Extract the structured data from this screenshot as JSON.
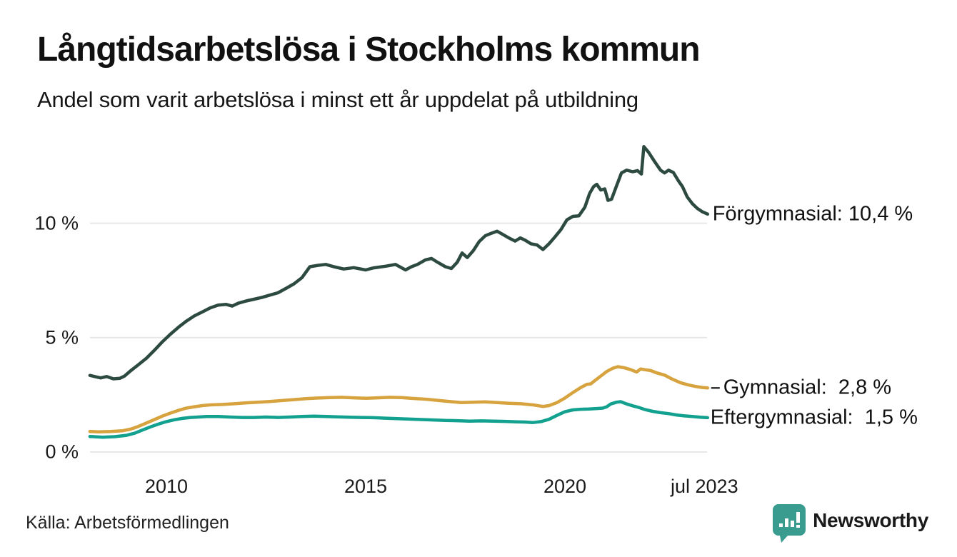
{
  "header": {
    "title": "Långtidsarbetslösa i Stockholms kommun",
    "subtitle": "Andel som varit arbetslösa i minst ett år uppdelat på utbildning"
  },
  "footer": {
    "source": "Källa: Arbetsförmedlingen",
    "brand": "Newsworthy"
  },
  "colors": {
    "forgymnasial": "#2d4a41",
    "gymnasial": "#d7a33f",
    "eftergymnasial": "#12a18e",
    "grid": "#e7e7e7",
    "label_dash": "#333333",
    "text": "#1a1a1a",
    "brand": "#3a9b8f"
  },
  "chart_data": {
    "type": "line",
    "title": "Långtidsarbetslösa i Stockholms kommun",
    "subtitle": "Andel som varit arbetslösa i minst ett år uppdelat på utbildning",
    "xlabel": "",
    "ylabel": "",
    "unit": "%",
    "grid": true,
    "legend_position": "end-of-line",
    "x_range": [
      2008.08,
      2023.58
    ],
    "ylim": [
      0,
      13.8
    ],
    "x_ticks": [
      {
        "label": "2010",
        "year": 2010
      },
      {
        "label": "2015",
        "year": 2015
      },
      {
        "label": "2020",
        "year": 2020
      },
      {
        "label": "jul 2023",
        "year": 2023.5
      }
    ],
    "y_ticks": [
      {
        "label": "0 %",
        "value": 0
      },
      {
        "label": "5 %",
        "value": 5
      },
      {
        "label": "10 %",
        "value": 10
      }
    ],
    "series": [
      {
        "name": "Förgymnasial",
        "end_label": "Förgymnasial: 10,4 %",
        "end_value": 10.4,
        "color": "#2d4a41",
        "leader_dash": false,
        "label_offset": 7,
        "points": [
          [
            2008.08,
            3.35
          ],
          [
            2008.2,
            3.3
          ],
          [
            2008.35,
            3.24
          ],
          [
            2008.5,
            3.3
          ],
          [
            2008.67,
            3.2
          ],
          [
            2008.83,
            3.22
          ],
          [
            2008.95,
            3.32
          ],
          [
            2009.1,
            3.55
          ],
          [
            2009.3,
            3.82
          ],
          [
            2009.5,
            4.1
          ],
          [
            2009.7,
            4.45
          ],
          [
            2009.9,
            4.82
          ],
          [
            2010.1,
            5.15
          ],
          [
            2010.3,
            5.45
          ],
          [
            2010.5,
            5.72
          ],
          [
            2010.7,
            5.95
          ],
          [
            2010.9,
            6.12
          ],
          [
            2011.1,
            6.3
          ],
          [
            2011.3,
            6.42
          ],
          [
            2011.5,
            6.45
          ],
          [
            2011.65,
            6.38
          ],
          [
            2011.8,
            6.5
          ],
          [
            2012.0,
            6.6
          ],
          [
            2012.2,
            6.68
          ],
          [
            2012.4,
            6.76
          ],
          [
            2012.6,
            6.86
          ],
          [
            2012.8,
            6.96
          ],
          [
            2013.0,
            7.15
          ],
          [
            2013.2,
            7.35
          ],
          [
            2013.4,
            7.62
          ],
          [
            2013.6,
            8.1
          ],
          [
            2013.8,
            8.16
          ],
          [
            2014.0,
            8.2
          ],
          [
            2014.2,
            8.1
          ],
          [
            2014.45,
            8.0
          ],
          [
            2014.7,
            8.06
          ],
          [
            2015.0,
            7.96
          ],
          [
            2015.2,
            8.05
          ],
          [
            2015.5,
            8.12
          ],
          [
            2015.75,
            8.2
          ],
          [
            2016.0,
            7.96
          ],
          [
            2016.15,
            8.1
          ],
          [
            2016.3,
            8.2
          ],
          [
            2016.5,
            8.4
          ],
          [
            2016.65,
            8.46
          ],
          [
            2016.8,
            8.3
          ],
          [
            2017.0,
            8.1
          ],
          [
            2017.15,
            8.02
          ],
          [
            2017.3,
            8.3
          ],
          [
            2017.42,
            8.7
          ],
          [
            2017.55,
            8.5
          ],
          [
            2017.7,
            8.8
          ],
          [
            2017.85,
            9.2
          ],
          [
            2018.0,
            9.45
          ],
          [
            2018.15,
            9.56
          ],
          [
            2018.3,
            9.65
          ],
          [
            2018.45,
            9.5
          ],
          [
            2018.6,
            9.35
          ],
          [
            2018.75,
            9.22
          ],
          [
            2018.88,
            9.36
          ],
          [
            2019.0,
            9.26
          ],
          [
            2019.15,
            9.1
          ],
          [
            2019.3,
            9.05
          ],
          [
            2019.45,
            8.85
          ],
          [
            2019.6,
            9.1
          ],
          [
            2019.75,
            9.4
          ],
          [
            2019.9,
            9.72
          ],
          [
            2020.05,
            10.15
          ],
          [
            2020.2,
            10.3
          ],
          [
            2020.35,
            10.32
          ],
          [
            2020.5,
            10.7
          ],
          [
            2020.62,
            11.3
          ],
          [
            2020.72,
            11.6
          ],
          [
            2020.8,
            11.7
          ],
          [
            2020.9,
            11.45
          ],
          [
            2021.0,
            11.5
          ],
          [
            2021.08,
            11.0
          ],
          [
            2021.17,
            11.05
          ],
          [
            2021.3,
            11.65
          ],
          [
            2021.42,
            12.2
          ],
          [
            2021.55,
            12.32
          ],
          [
            2021.7,
            12.25
          ],
          [
            2021.82,
            12.3
          ],
          [
            2021.92,
            12.15
          ],
          [
            2021.98,
            13.35
          ],
          [
            2022.1,
            13.1
          ],
          [
            2022.25,
            12.7
          ],
          [
            2022.4,
            12.32
          ],
          [
            2022.5,
            12.2
          ],
          [
            2022.6,
            12.32
          ],
          [
            2022.72,
            12.22
          ],
          [
            2022.85,
            11.85
          ],
          [
            2022.95,
            11.6
          ],
          [
            2023.07,
            11.15
          ],
          [
            2023.2,
            10.85
          ],
          [
            2023.32,
            10.65
          ],
          [
            2023.45,
            10.5
          ],
          [
            2023.58,
            10.4
          ]
        ]
      },
      {
        "name": "Gymnasial",
        "end_label": "Gymnasial:  2,8 %",
        "end_value": 2.8,
        "color": "#d7a33f",
        "leader_dash": true,
        "label_offset": 22,
        "points": [
          [
            2008.08,
            0.9
          ],
          [
            2008.3,
            0.88
          ],
          [
            2008.6,
            0.9
          ],
          [
            2008.9,
            0.93
          ],
          [
            2009.1,
            1.0
          ],
          [
            2009.3,
            1.12
          ],
          [
            2009.5,
            1.27
          ],
          [
            2009.7,
            1.42
          ],
          [
            2009.9,
            1.57
          ],
          [
            2010.1,
            1.7
          ],
          [
            2010.3,
            1.82
          ],
          [
            2010.5,
            1.92
          ],
          [
            2010.7,
            1.98
          ],
          [
            2010.9,
            2.03
          ],
          [
            2011.1,
            2.06
          ],
          [
            2011.4,
            2.08
          ],
          [
            2011.7,
            2.11
          ],
          [
            2012.0,
            2.15
          ],
          [
            2012.3,
            2.18
          ],
          [
            2012.6,
            2.21
          ],
          [
            2012.9,
            2.25
          ],
          [
            2013.2,
            2.29
          ],
          [
            2013.5,
            2.33
          ],
          [
            2013.8,
            2.36
          ],
          [
            2014.1,
            2.38
          ],
          [
            2014.4,
            2.39
          ],
          [
            2014.7,
            2.37
          ],
          [
            2015.0,
            2.35
          ],
          [
            2015.3,
            2.37
          ],
          [
            2015.6,
            2.39
          ],
          [
            2015.9,
            2.38
          ],
          [
            2016.2,
            2.34
          ],
          [
            2016.5,
            2.31
          ],
          [
            2016.8,
            2.26
          ],
          [
            2017.1,
            2.21
          ],
          [
            2017.4,
            2.16
          ],
          [
            2017.7,
            2.18
          ],
          [
            2018.0,
            2.19
          ],
          [
            2018.3,
            2.16
          ],
          [
            2018.6,
            2.13
          ],
          [
            2018.9,
            2.11
          ],
          [
            2019.2,
            2.06
          ],
          [
            2019.45,
            1.99
          ],
          [
            2019.6,
            2.03
          ],
          [
            2019.8,
            2.16
          ],
          [
            2020.0,
            2.36
          ],
          [
            2020.2,
            2.6
          ],
          [
            2020.4,
            2.82
          ],
          [
            2020.55,
            2.96
          ],
          [
            2020.65,
            2.98
          ],
          [
            2020.75,
            3.12
          ],
          [
            2020.9,
            3.32
          ],
          [
            2021.05,
            3.52
          ],
          [
            2021.2,
            3.66
          ],
          [
            2021.33,
            3.73
          ],
          [
            2021.5,
            3.68
          ],
          [
            2021.65,
            3.6
          ],
          [
            2021.8,
            3.5
          ],
          [
            2021.9,
            3.63
          ],
          [
            2022.0,
            3.6
          ],
          [
            2022.15,
            3.56
          ],
          [
            2022.3,
            3.46
          ],
          [
            2022.5,
            3.36
          ],
          [
            2022.7,
            3.18
          ],
          [
            2022.9,
            3.03
          ],
          [
            2023.1,
            2.93
          ],
          [
            2023.3,
            2.86
          ],
          [
            2023.45,
            2.82
          ],
          [
            2023.58,
            2.8
          ]
        ]
      },
      {
        "name": "Eftergymnasial",
        "end_label": "Eftergymnasial:  1,5 %",
        "end_value": 1.5,
        "color": "#12a18e",
        "leader_dash": false,
        "label_offset": 4,
        "points": [
          [
            2008.08,
            0.68
          ],
          [
            2008.4,
            0.65
          ],
          [
            2008.7,
            0.67
          ],
          [
            2009.0,
            0.73
          ],
          [
            2009.2,
            0.82
          ],
          [
            2009.4,
            0.96
          ],
          [
            2009.6,
            1.1
          ],
          [
            2009.8,
            1.22
          ],
          [
            2010.0,
            1.33
          ],
          [
            2010.2,
            1.41
          ],
          [
            2010.4,
            1.47
          ],
          [
            2010.6,
            1.51
          ],
          [
            2010.8,
            1.53
          ],
          [
            2011.0,
            1.55
          ],
          [
            2011.3,
            1.55
          ],
          [
            2011.6,
            1.53
          ],
          [
            2011.9,
            1.51
          ],
          [
            2012.2,
            1.51
          ],
          [
            2012.5,
            1.53
          ],
          [
            2012.8,
            1.51
          ],
          [
            2013.1,
            1.53
          ],
          [
            2013.4,
            1.55
          ],
          [
            2013.7,
            1.57
          ],
          [
            2014.0,
            1.55
          ],
          [
            2014.3,
            1.54
          ],
          [
            2014.6,
            1.52
          ],
          [
            2014.9,
            1.51
          ],
          [
            2015.2,
            1.5
          ],
          [
            2015.5,
            1.48
          ],
          [
            2015.8,
            1.46
          ],
          [
            2016.1,
            1.44
          ],
          [
            2016.4,
            1.42
          ],
          [
            2016.7,
            1.4
          ],
          [
            2017.0,
            1.38
          ],
          [
            2017.3,
            1.37
          ],
          [
            2017.6,
            1.35
          ],
          [
            2017.9,
            1.36
          ],
          [
            2018.2,
            1.35
          ],
          [
            2018.5,
            1.34
          ],
          [
            2018.8,
            1.32
          ],
          [
            2019.0,
            1.31
          ],
          [
            2019.2,
            1.29
          ],
          [
            2019.4,
            1.33
          ],
          [
            2019.6,
            1.43
          ],
          [
            2019.8,
            1.6
          ],
          [
            2020.0,
            1.76
          ],
          [
            2020.2,
            1.84
          ],
          [
            2020.4,
            1.87
          ],
          [
            2020.6,
            1.88
          ],
          [
            2020.8,
            1.9
          ],
          [
            2020.95,
            1.92
          ],
          [
            2021.05,
            1.98
          ],
          [
            2021.15,
            2.1
          ],
          [
            2021.3,
            2.18
          ],
          [
            2021.4,
            2.2
          ],
          [
            2021.55,
            2.1
          ],
          [
            2021.7,
            2.02
          ],
          [
            2021.85,
            1.95
          ],
          [
            2022.0,
            1.86
          ],
          [
            2022.2,
            1.78
          ],
          [
            2022.4,
            1.72
          ],
          [
            2022.6,
            1.68
          ],
          [
            2022.8,
            1.62
          ],
          [
            2023.0,
            1.58
          ],
          [
            2023.2,
            1.55
          ],
          [
            2023.4,
            1.52
          ],
          [
            2023.58,
            1.5
          ]
        ]
      }
    ]
  }
}
